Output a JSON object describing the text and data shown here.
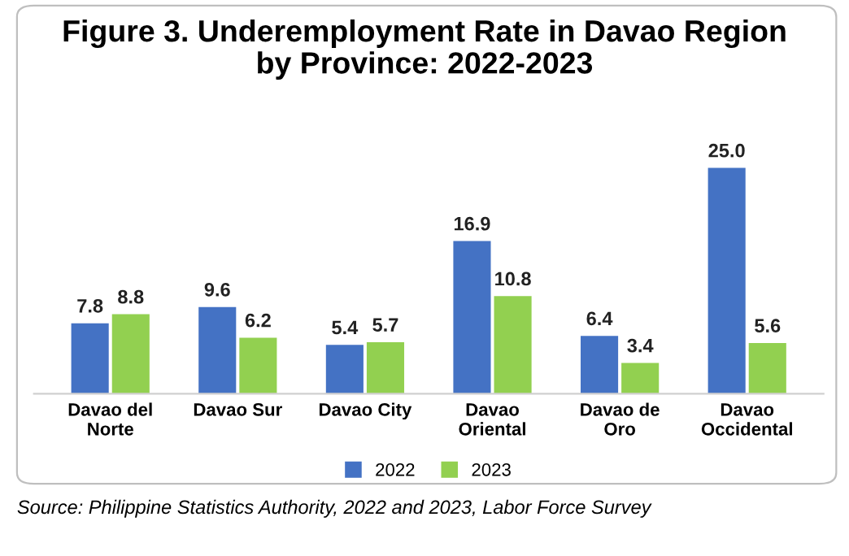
{
  "chart_data": {
    "type": "bar",
    "title": "Figure 3. Underemployment Rate in Davao Region\nby Province: 2022-2023",
    "categories": [
      "Davao del\nNorte",
      "Davao Sur",
      "Davao City",
      "Davao\nOriental",
      "Davao de\nOro",
      "Davao\nOccidental"
    ],
    "series": [
      {
        "name": "2022",
        "color": "#4472c4",
        "values": [
          7.8,
          9.6,
          5.4,
          16.9,
          6.4,
          25.0
        ],
        "value_labels": [
          "7.8",
          "9.6",
          "5.4",
          "16.9",
          "6.4",
          "25.0"
        ]
      },
      {
        "name": "2023",
        "color": "#92d050",
        "values": [
          8.8,
          6.2,
          5.7,
          10.8,
          3.4,
          5.6
        ],
        "value_labels": [
          "8.8",
          "6.2",
          "5.7",
          "10.8",
          "3.4",
          "5.6"
        ]
      }
    ],
    "legend": "bottom",
    "grid": false,
    "annotations": [
      "Source: Philippine Statistics Authority, 2022 and 2023, Labor Force Survey"
    ]
  }
}
